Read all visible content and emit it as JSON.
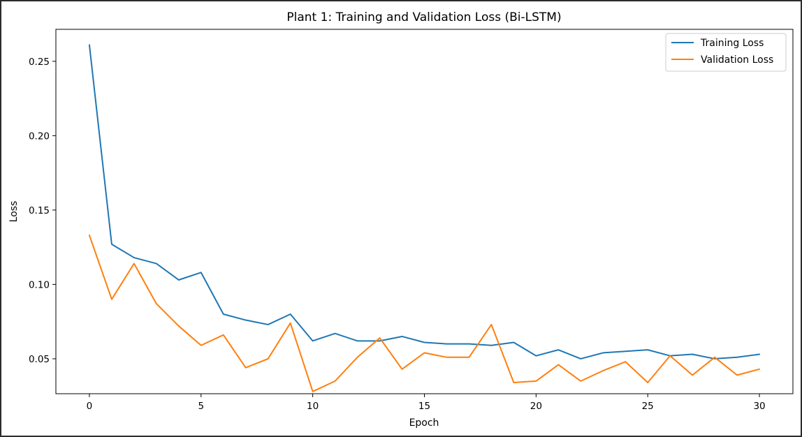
{
  "chart_data": {
    "type": "line",
    "title": "Plant 1: Training and Validation Loss (Bi-LSTM)",
    "xlabel": "Epoch",
    "ylabel": "Loss",
    "xlim": [
      -1.5,
      31.5
    ],
    "ylim": [
      0.0265,
      0.2715
    ],
    "xticks": [
      0,
      5,
      10,
      15,
      20,
      25,
      30
    ],
    "xtick_labels": [
      "0",
      "5",
      "10",
      "15",
      "20",
      "25",
      "30"
    ],
    "yticks": [
      0.05,
      0.1,
      0.15,
      0.2,
      0.25
    ],
    "ytick_labels": [
      "0.05",
      "0.10",
      "0.15",
      "0.20",
      "0.25"
    ],
    "grid": false,
    "legend_position": "top-right",
    "x": [
      0,
      1,
      2,
      3,
      4,
      5,
      6,
      7,
      8,
      9,
      10,
      11,
      12,
      13,
      14,
      15,
      16,
      17,
      18,
      19,
      20,
      21,
      22,
      23,
      24,
      25,
      26,
      27,
      28,
      29,
      30
    ],
    "series": [
      {
        "name": "Training Loss",
        "color": "#1f77b4",
        "values": [
          0.261,
          0.127,
          0.118,
          0.114,
          0.103,
          0.108,
          0.08,
          0.076,
          0.073,
          0.08,
          0.062,
          0.067,
          0.062,
          0.062,
          0.065,
          0.061,
          0.06,
          0.06,
          0.059,
          0.061,
          0.052,
          0.056,
          0.05,
          0.054,
          0.055,
          0.056,
          0.052,
          0.053,
          0.05,
          0.051,
          0.053
        ]
      },
      {
        "name": "Validation Loss",
        "color": "#ff7f0e",
        "values": [
          0.133,
          0.09,
          0.114,
          0.087,
          0.072,
          0.059,
          0.066,
          0.044,
          0.05,
          0.074,
          0.028,
          0.035,
          0.051,
          0.064,
          0.043,
          0.054,
          0.051,
          0.051,
          0.073,
          0.034,
          0.035,
          0.046,
          0.035,
          0.042,
          0.048,
          0.034,
          0.052,
          0.039,
          0.051,
          0.039,
          0.043
        ]
      }
    ]
  }
}
